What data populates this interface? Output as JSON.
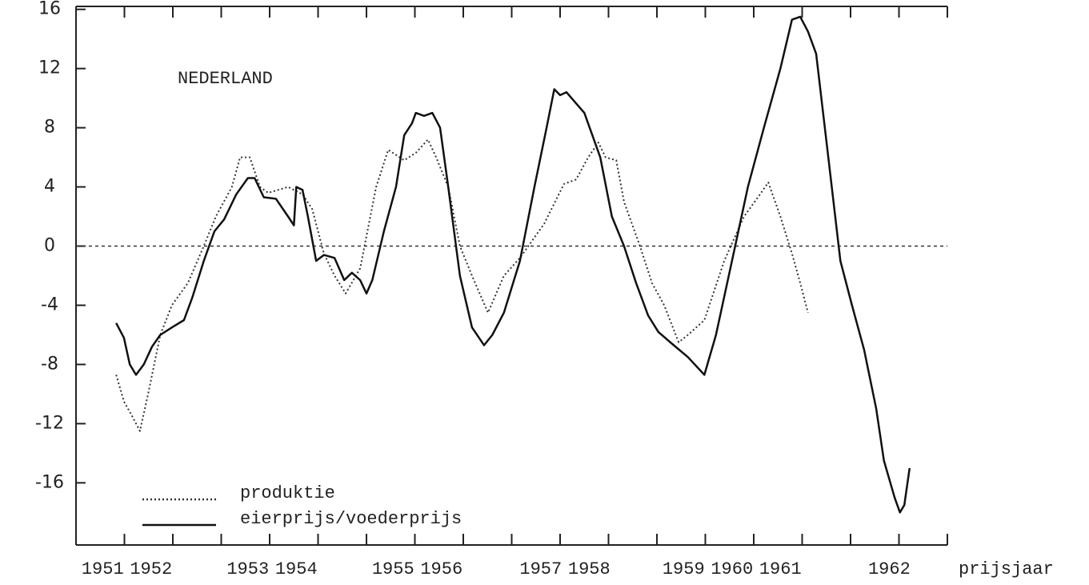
{
  "chart_data": {
    "type": "line",
    "annotation": "NEDERLAND",
    "x_label": "prijsjaar",
    "xlim": [
      0,
      18
    ],
    "xticks": [
      {
        "value": 0.55,
        "label": "1951"
      },
      {
        "value": 1.55,
        "label": "1952"
      },
      {
        "value": 3.55,
        "label": "1953"
      },
      {
        "value": 4.55,
        "label": "1954"
      },
      {
        "value": 6.55,
        "label": "1955"
      },
      {
        "value": 7.55,
        "label": "1956"
      },
      {
        "value": 9.6,
        "label": "1957"
      },
      {
        "value": 10.6,
        "label": "1958"
      },
      {
        "value": 12.55,
        "label": "1959"
      },
      {
        "value": 13.55,
        "label": "1960"
      },
      {
        "value": 14.55,
        "label": "1961"
      },
      {
        "value": 16.8,
        "label": "1962"
      }
    ],
    "xtick_marks": [
      1,
      2,
      3,
      4,
      5,
      6,
      7,
      8,
      9,
      10,
      11,
      12,
      13,
      14,
      15,
      16,
      17,
      18
    ],
    "ylim": [
      -20.2,
      16.2
    ],
    "yticks": [
      16,
      12,
      8,
      4,
      0,
      -4,
      -8,
      -12,
      -16
    ],
    "reference_line": 0,
    "series": [
      {
        "name": "produktie",
        "color": "#333333",
        "style": "dotted",
        "x": [
          0.83,
          0.99,
          1.16,
          1.32,
          1.49,
          1.74,
          1.98,
          2.31,
          2.64,
          2.89,
          3.22,
          3.39,
          3.59,
          3.8,
          3.97,
          4.38,
          4.68,
          4.88,
          5.12,
          5.34,
          5.57,
          5.87,
          6.2,
          6.45,
          6.78,
          7.02,
          7.27,
          7.44,
          7.69,
          7.93,
          8.18,
          8.51,
          8.84,
          9.17,
          9.67,
          10.08,
          10.33,
          10.58,
          10.79,
          10.94,
          11.16,
          11.32,
          11.65,
          11.9,
          12.15,
          12.45,
          12.64,
          12.98,
          13.39,
          13.8,
          14.13,
          14.3,
          14.55,
          14.79,
          14.96,
          15.12
        ],
        "values": [
          -8.7,
          -10.5,
          -11.5,
          -12.5,
          -10,
          -6,
          -4,
          -2.5,
          0,
          2,
          4,
          6,
          6,
          4,
          3.6,
          4,
          3.5,
          2.5,
          -0.5,
          -2,
          -3.2,
          -1.5,
          4,
          6.5,
          5.8,
          6.3,
          7.2,
          6,
          4,
          0,
          -2,
          -4.5,
          -2,
          -0.8,
          1.5,
          4.2,
          4.5,
          6,
          7,
          6,
          5.8,
          3,
          0,
          -2.5,
          -4,
          -6.5,
          -6,
          -5,
          -1,
          2,
          3.5,
          4.3,
          2,
          -0.5,
          -2.5,
          -4.5
        ]
      },
      {
        "name": "eierprijs/voederprijs",
        "color": "#111111",
        "style": "solid",
        "x": [
          0.83,
          0.99,
          1.11,
          1.24,
          1.4,
          1.57,
          1.74,
          1.98,
          2.23,
          2.4,
          2.64,
          2.86,
          3.06,
          3.31,
          3.55,
          3.69,
          3.88,
          4.13,
          4.38,
          4.5,
          4.55,
          4.68,
          4.79,
          4.96,
          5.12,
          5.34,
          5.54,
          5.7,
          5.87,
          6,
          6.12,
          6.36,
          6.61,
          6.78,
          6.94,
          7.02,
          7.19,
          7.36,
          7.52,
          7.69,
          7.93,
          8.18,
          8.43,
          8.6,
          8.84,
          9.17,
          9.47,
          9.72,
          9.88,
          10,
          10.13,
          10.5,
          10.83,
          11.07,
          11.32,
          11.57,
          11.82,
          12.03,
          12.31,
          12.64,
          12.98,
          13.22,
          13.55,
          13.88,
          14.21,
          14.55,
          14.79,
          14.96,
          15.12,
          15.29,
          15.54,
          15.79,
          16.03,
          16.28,
          16.53,
          16.69,
          16.91,
          17.02,
          17.11,
          17.22
        ],
        "values": [
          -5.2,
          -6.2,
          -8,
          -8.7,
          -8,
          -6.8,
          -6,
          -5.5,
          -5,
          -3.5,
          -1,
          1,
          1.8,
          3.5,
          4.6,
          4.6,
          3.3,
          3.2,
          2,
          1.4,
          4,
          3.8,
          2,
          -1,
          -0.6,
          -0.8,
          -2.3,
          -1.8,
          -2.3,
          -3.2,
          -2.3,
          1,
          4,
          7.5,
          8.3,
          9,
          8.8,
          9,
          8,
          4,
          -2,
          -5.5,
          -6.7,
          -6,
          -4.5,
          -1,
          4,
          8,
          10.6,
          10.2,
          10.4,
          9,
          6,
          2,
          0,
          -2.5,
          -4.7,
          -5.8,
          -6.6,
          -7.5,
          -8.7,
          -6,
          -1,
          4,
          8,
          12,
          15.3,
          15.5,
          14.5,
          13,
          6,
          -1,
          -4,
          -7,
          -11,
          -14.5,
          -17,
          -18,
          -17.5,
          -15
        ]
      }
    ]
  }
}
